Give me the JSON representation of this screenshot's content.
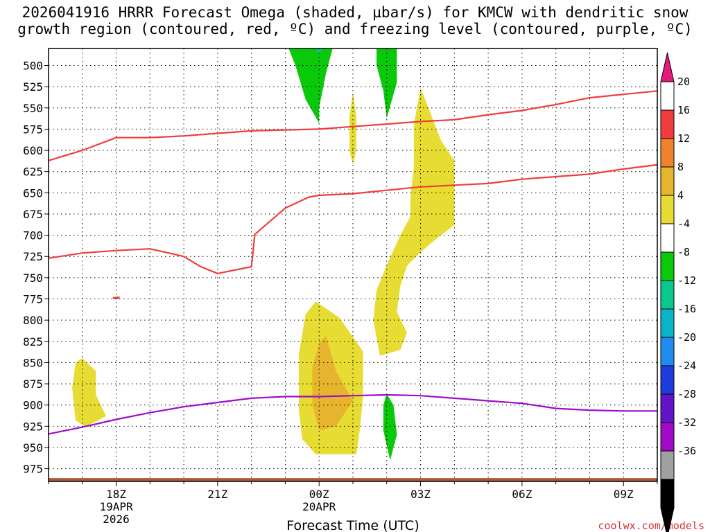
{
  "chart_data": {
    "type": "time-height cross-section",
    "title_line1": "2026041916 HRRR Forecast Omega (shaded, µbar/s) for KMCW with dendritic snow",
    "title_line2": "growth region (contoured, red, ºC) and freezing level (contoured, purple, ºC)",
    "xlabel": "Forecast Time (UTC)",
    "watermark": "coolwx.com/models",
    "x_range_hours": [
      16,
      34
    ],
    "y_range_hpa": [
      480,
      990
    ],
    "grid": true,
    "y_ticks": [
      500,
      525,
      550,
      575,
      600,
      625,
      650,
      675,
      700,
      725,
      750,
      775,
      800,
      825,
      850,
      875,
      900,
      925,
      950,
      975
    ],
    "y_tick_labels": [
      "500",
      "525",
      "550",
      "575",
      "600",
      "625",
      "650",
      "675",
      "700",
      "725",
      "750",
      "775",
      "800",
      "825",
      "850",
      "875",
      "900",
      "925",
      "950",
      "975"
    ],
    "x_ticks": [
      {
        "hour": 18,
        "label": "18Z",
        "sub1": "19APR",
        "sub2": "2026"
      },
      {
        "hour": 21,
        "label": "21Z",
        "sub1": "",
        "sub2": ""
      },
      {
        "hour": 24,
        "label": "00Z",
        "sub1": "20APR",
        "sub2": ""
      },
      {
        "hour": 27,
        "label": "03Z",
        "sub1": "",
        "sub2": ""
      },
      {
        "hour": 30,
        "label": "06Z",
        "sub1": "",
        "sub2": ""
      },
      {
        "hour": 33,
        "label": "09Z",
        "sub1": "",
        "sub2": ""
      }
    ],
    "colorbar": {
      "labels": [
        "20",
        "16",
        "12",
        "8",
        "4",
        "-4",
        "-8",
        "-12",
        "-16",
        "-20",
        "-24",
        "-28",
        "-32",
        "-36"
      ],
      "colors": [
        "#ffffff",
        "#f03c3c",
        "#f0822d",
        "#e6b42d",
        "#e6dc32",
        "#ffffff",
        "#0ac80a",
        "#0ac88c",
        "#0ab4c8",
        "#1e8cf0",
        "#1e3cdc",
        "#6414c8",
        "#a00ac8",
        "#a0a0a0",
        "#000000"
      ],
      "top_arrow_color": "#e6197d",
      "bottom_arrow_color": "#000000"
    },
    "shaded_regions": [
      {
        "name": "omega-yellow-upper-plume",
        "color": "#e6dc32",
        "points": [
          [
            27.0,
            526
          ],
          [
            27.6,
            588
          ],
          [
            28.0,
            612
          ],
          [
            28.0,
            688
          ],
          [
            27.5,
            703
          ],
          [
            27.0,
            720
          ],
          [
            26.6,
            736
          ],
          [
            26.4,
            760
          ],
          [
            26.3,
            790
          ],
          [
            26.6,
            815
          ],
          [
            26.4,
            835
          ],
          [
            25.8,
            842
          ],
          [
            25.6,
            800
          ],
          [
            25.7,
            765
          ],
          [
            26.0,
            735
          ],
          [
            26.4,
            700
          ],
          [
            26.7,
            678
          ],
          [
            26.7,
            655
          ],
          [
            26.8,
            620
          ],
          [
            26.8,
            570
          ]
        ]
      },
      {
        "name": "omega-yellow-lower-blob",
        "color": "#e6dc32",
        "points": [
          [
            23.9,
            778
          ],
          [
            24.6,
            797
          ],
          [
            25.3,
            837
          ],
          [
            25.3,
            890
          ],
          [
            25.2,
            930
          ],
          [
            25.1,
            958
          ],
          [
            23.9,
            958
          ],
          [
            23.5,
            940
          ],
          [
            23.4,
            905
          ],
          [
            23.4,
            840
          ],
          [
            23.6,
            793
          ]
        ]
      },
      {
        "name": "omega-orange-core",
        "color": "#e6b42d",
        "points": [
          [
            24.2,
            818
          ],
          [
            24.5,
            860
          ],
          [
            25.0,
            895
          ],
          [
            24.5,
            925
          ],
          [
            24.0,
            930
          ],
          [
            23.8,
            900
          ],
          [
            23.8,
            855
          ],
          [
            24.0,
            828
          ]
        ]
      },
      {
        "name": "omega-yellow-thin-streak",
        "color": "#e6dc32",
        "points": [
          [
            25.0,
            531
          ],
          [
            25.1,
            560
          ],
          [
            25.1,
            600
          ],
          [
            25.0,
            617
          ],
          [
            24.9,
            600
          ],
          [
            24.9,
            560
          ]
        ]
      },
      {
        "name": "omega-yellow-left-blob",
        "color": "#e6dc32",
        "points": [
          [
            16.8,
            850
          ],
          [
            17.0,
            845
          ],
          [
            17.4,
            860
          ],
          [
            17.4,
            888
          ],
          [
            17.7,
            913
          ],
          [
            17.1,
            926
          ],
          [
            16.8,
            918
          ],
          [
            16.7,
            880
          ]
        ]
      },
      {
        "name": "omega-yellow-surface-patch",
        "color": "#e6dc32",
        "points": [
          [
            25.4,
            987
          ],
          [
            26.2,
            987
          ],
          [
            26.2,
            990
          ],
          [
            25.4,
            990
          ]
        ]
      },
      {
        "name": "omega-green-upper-left",
        "color": "#0ac80a",
        "points": [
          [
            23.1,
            480
          ],
          [
            24.4,
            480
          ],
          [
            24.2,
            510
          ],
          [
            24.0,
            550
          ],
          [
            24.0,
            568
          ],
          [
            23.6,
            540
          ],
          [
            23.3,
            500
          ]
        ]
      },
      {
        "name": "omega-teal-upper-left-core",
        "color": "#0ac88c",
        "points": [
          [
            23.9,
            480
          ],
          [
            24.1,
            480
          ],
          [
            24.0,
            487
          ]
        ]
      },
      {
        "name": "omega-green-upper-right",
        "color": "#0ac80a",
        "points": [
          [
            25.7,
            480
          ],
          [
            26.3,
            480
          ],
          [
            26.3,
            520
          ],
          [
            26.0,
            562
          ],
          [
            25.9,
            530
          ],
          [
            25.7,
            500
          ]
        ]
      },
      {
        "name": "omega-green-low",
        "color": "#0ac80a",
        "points": [
          [
            26.0,
            887
          ],
          [
            26.2,
            900
          ],
          [
            26.3,
            935
          ],
          [
            26.1,
            965
          ],
          [
            25.9,
            930
          ],
          [
            25.9,
            900
          ]
        ]
      },
      {
        "name": "surface-ground-band",
        "color": "#b0583a",
        "points": [
          [
            16,
            986
          ],
          [
            34,
            986
          ],
          [
            34,
            990
          ],
          [
            16,
            990
          ]
        ]
      },
      {
        "name": "omega-tiny-red-speck",
        "color": "#f03c3c",
        "points": [
          [
            17.9,
            773
          ],
          [
            18.1,
            772
          ],
          [
            18.1,
            775
          ],
          [
            17.9,
            775
          ]
        ]
      }
    ],
    "contours": [
      {
        "name": "dendritic-upper-minus12C",
        "color": "#f03c3c",
        "points": [
          [
            16,
            612
          ],
          [
            17,
            600
          ],
          [
            18,
            585
          ],
          [
            19,
            585
          ],
          [
            20,
            583
          ],
          [
            21,
            580
          ],
          [
            22,
            577
          ],
          [
            23,
            576
          ],
          [
            24,
            575
          ],
          [
            25,
            572
          ],
          [
            26,
            569
          ],
          [
            27,
            566
          ],
          [
            28,
            564
          ],
          [
            29,
            558
          ],
          [
            30,
            553
          ],
          [
            31,
            546
          ],
          [
            32,
            538
          ],
          [
            33,
            534
          ],
          [
            34,
            530
          ]
        ]
      },
      {
        "name": "dendritic-lower-minus18C",
        "color": "#f03c3c",
        "points": [
          [
            16,
            727
          ],
          [
            17,
            721
          ],
          [
            18,
            718
          ],
          [
            19,
            716
          ],
          [
            20,
            725
          ],
          [
            20.5,
            737
          ],
          [
            21,
            745
          ],
          [
            22,
            737
          ],
          [
            22.1,
            699
          ],
          [
            23,
            668
          ],
          [
            23.7,
            655
          ],
          [
            24,
            653
          ],
          [
            25,
            651
          ],
          [
            26,
            647
          ],
          [
            27,
            643
          ],
          [
            28,
            641
          ],
          [
            29,
            639
          ],
          [
            30,
            634
          ],
          [
            31,
            631
          ],
          [
            32,
            628
          ],
          [
            33,
            622
          ],
          [
            34,
            617
          ]
        ]
      },
      {
        "name": "freezing-level-0C",
        "color": "#a00ac8",
        "points": [
          [
            16,
            934
          ],
          [
            17,
            926
          ],
          [
            18,
            917
          ],
          [
            19,
            909
          ],
          [
            20,
            902
          ],
          [
            21,
            897
          ],
          [
            22,
            892
          ],
          [
            23,
            890
          ],
          [
            24,
            890
          ],
          [
            25,
            889
          ],
          [
            26,
            888
          ],
          [
            27,
            889
          ],
          [
            28,
            892
          ],
          [
            29,
            895
          ],
          [
            30,
            898
          ],
          [
            31,
            904
          ],
          [
            32,
            906
          ],
          [
            33,
            907
          ],
          [
            34,
            907
          ]
        ]
      }
    ]
  }
}
